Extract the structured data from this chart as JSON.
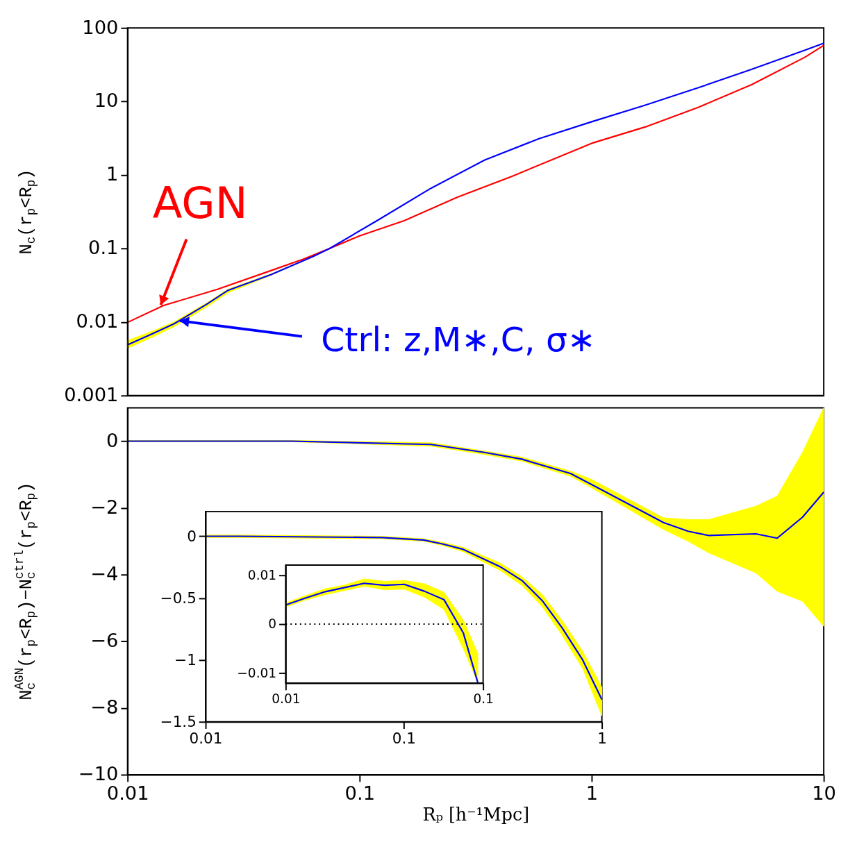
{
  "chart_data": [
    {
      "type": "line",
      "ylabel": "N$_{c}$(r$_{p}$<R$_{p}$)",
      "log": "xy",
      "xlim": [
        0.01,
        10
      ],
      "ylim": [
        0.001,
        100
      ],
      "xticks": [
        0.01,
        0.1,
        1,
        10
      ],
      "yticks": [
        0.001,
        0.01,
        0.1,
        1,
        10,
        100
      ],
      "tick_labels": "y",
      "series": [
        {
          "color": "#ff0000",
          "x": [
            0.01,
            0.0143,
            0.0244,
            0.0414,
            0.057,
            0.0742,
            0.1,
            0.156,
            0.264,
            0.45,
            1,
            1.7,
            2.9,
            4.9,
            8.3,
            10
          ],
          "values": [
            0.0099,
            0.0168,
            0.0279,
            0.05,
            0.0715,
            0.1,
            0.149,
            0.24,
            0.5,
            0.95,
            2.7,
            4.5,
            8.4,
            17,
            40,
            58
          ]
        },
        {
          "color": "#0000ff",
          "x": [
            0.01,
            0.0129,
            0.0159,
            0.0219,
            0.0271,
            0.0414,
            0.063,
            0.0742,
            0.119,
            0.203,
            0.346,
            0.59,
            1,
            1.7,
            2.9,
            4.9,
            8.3,
            10
          ],
          "values": [
            0.0049,
            0.007,
            0.0095,
            0.0174,
            0.027,
            0.044,
            0.078,
            0.1,
            0.24,
            0.66,
            1.6,
            3.1,
            5.3,
            8.9,
            15.5,
            27.5,
            50,
            62
          ],
          "lower": [
            0.0044,
            0.0063,
            0.0087,
            0.016,
            0.025,
            0.043,
            0.078,
            0.1,
            0.24,
            0.66,
            1.6,
            3.1,
            5.3,
            8.9,
            15.5,
            27.5,
            50,
            62
          ],
          "upper": [
            0.0056,
            0.0076,
            0.0101,
            0.0182,
            0.028,
            0.045,
            0.078,
            0.1,
            0.24,
            0.66,
            1.6,
            3.1,
            5.3,
            8.9,
            15.5,
            27.5,
            50,
            62
          ]
        }
      ],
      "annotations": [
        {
          "text": "AGN",
          "x": 0.0139,
          "y": 0.0171
        },
        {
          "text": "Ctrl: z,M∗,C, σ∗",
          "x": 0.0168,
          "y": 0.0104
        }
      ]
    },
    {
      "type": "line",
      "xlabel": "Rₚ [h⁻¹Mpc]",
      "ylabel": "N$_{c}$$^{AGN}$(r$_{p}$<R$_{p}$)−N$_{c}$$^{ctrl}$(r$_{p}$<R$_{p}$)",
      "log": "x",
      "xlim": [
        0.01,
        10
      ],
      "ylim": [
        -10,
        1
      ],
      "xticks": [
        0.01,
        0.1,
        1,
        10
      ],
      "yticks": [
        -10,
        -8,
        -6,
        -4,
        -2,
        0
      ],
      "series": [
        {
          "color": "#0000ff",
          "x": [
            0.01,
            0.051,
            0.203,
            0.346,
            0.5,
            0.81,
            1,
            2.04,
            2.6,
            3.2,
            5.1,
            6.3,
            8.1,
            10
          ],
          "values": [
            0,
            0,
            -0.1,
            -0.34,
            -0.54,
            -0.97,
            -1.3,
            -2.44,
            -2.7,
            -2.83,
            -2.78,
            -2.91,
            -2.28,
            -1.53
          ],
          "lower": [
            -0.02,
            -0.02,
            -0.15,
            -0.4,
            -0.6,
            -1.05,
            -1.4,
            -2.65,
            -3.0,
            -3.35,
            -3.95,
            -4.5,
            -4.8,
            -5.55
          ],
          "upper": [
            0.02,
            0.02,
            -0.05,
            -0.3,
            -0.48,
            -0.9,
            -1.15,
            -2.3,
            -2.35,
            -2.35,
            -1.95,
            -1.65,
            -0.34,
            1
          ]
        }
      ]
    },
    {
      "type": "line",
      "log": "x",
      "xlim": [
        0.01,
        1
      ],
      "ylim": [
        -1.5,
        0.2
      ],
      "xticks": [
        0.01,
        0.1,
        1
      ],
      "yticks": [
        -1.5,
        -1,
        -0.5,
        0
      ],
      "series": [
        {
          "color": "#0000ff",
          "x": [
            0.01,
            0.0147,
            0.0776,
            0.126,
            0.158,
            0.2,
            0.31,
            0.397,
            0.5,
            0.63,
            0.8,
            1
          ],
          "values": [
            0,
            0,
            -0.01,
            -0.03,
            -0.063,
            -0.106,
            -0.25,
            -0.36,
            -0.52,
            -0.74,
            -1.0,
            -1.32
          ],
          "lower": [
            -0.01,
            -0.01,
            -0.02,
            -0.04,
            -0.075,
            -0.125,
            -0.28,
            -0.4,
            -0.57,
            -0.8,
            -1.07,
            -1.45
          ],
          "upper": [
            0.01,
            0.01,
            0.0,
            -0.02,
            -0.05,
            -0.09,
            -0.22,
            -0.33,
            -0.47,
            -0.68,
            -0.93,
            -1.22
          ]
        }
      ]
    },
    {
      "type": "line",
      "log": "x",
      "xlim": [
        0.01,
        0.1
      ],
      "ylim": [
        -0.012,
        0.012
      ],
      "xticks": [
        0.01,
        0.1
      ],
      "yticks": [
        -0.01,
        0,
        0.01
      ],
      "series": [
        {
          "color": "#0000ff",
          "x": [
            0.01,
            0.0126,
            0.0159,
            0.0197,
            0.025,
            0.0317,
            0.0399,
            0.0504,
            0.0633,
            0.0794,
            0.094
          ],
          "values": [
            0.0039,
            0.0053,
            0.0066,
            0.0074,
            0.0083,
            0.0079,
            0.0081,
            0.0067,
            0.005,
            -0.0018,
            -0.0119
          ],
          "lower": [
            0.0035,
            0.0049,
            0.006,
            0.0068,
            0.0077,
            0.007,
            0.0071,
            0.0055,
            0.003,
            -0.005,
            -0.0119
          ],
          "upper": [
            0.0043,
            0.0058,
            0.0072,
            0.0079,
            0.0092,
            0.0087,
            0.0089,
            0.0082,
            0.0065,
            0.0008,
            -0.006
          ]
        }
      ],
      "ref_lines": [
        {
          "axis": "y",
          "value": 0,
          "line_style": "dotted",
          "color": "#000000"
        }
      ]
    }
  ]
}
